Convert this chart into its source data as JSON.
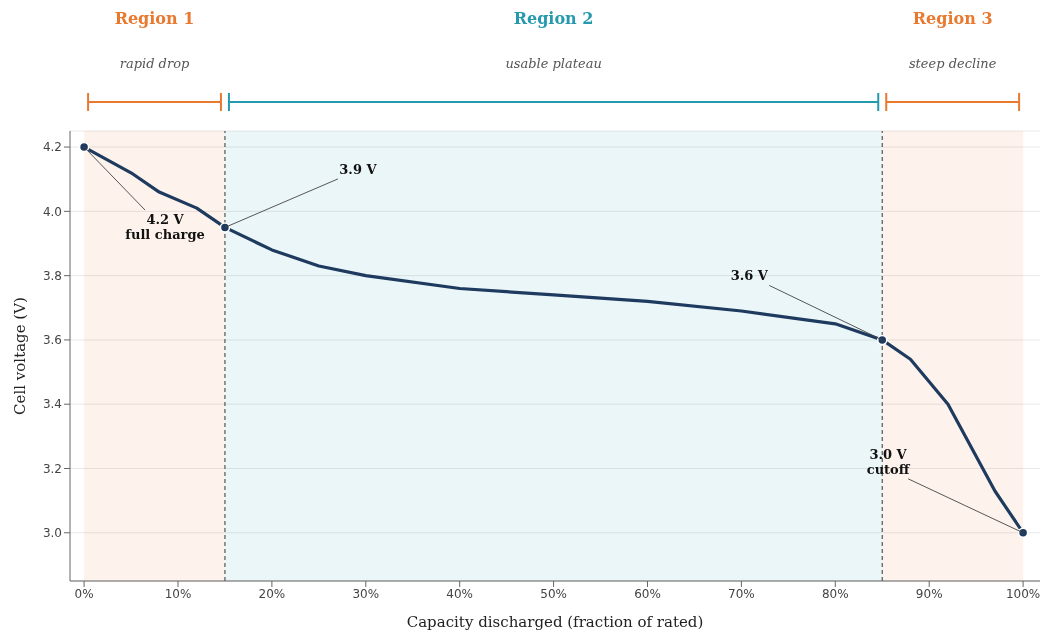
{
  "chart_data": {
    "type": "line",
    "xlabel": "Capacity discharged (fraction of rated)",
    "ylabel": "Cell voltage (V)",
    "series": [
      {
        "color": "#1f3a5f",
        "x": [
          0,
          0.05,
          0.08,
          0.12,
          0.15,
          0.2,
          0.25,
          0.3,
          0.4,
          0.5,
          0.6,
          0.7,
          0.8,
          0.85,
          0.88,
          0.92,
          0.97,
          1.0
        ],
        "values": [
          4.2,
          4.12,
          4.06,
          4.01,
          3.95,
          3.88,
          3.83,
          3.8,
          3.76,
          3.74,
          3.72,
          3.69,
          3.65,
          3.6,
          3.54,
          3.4,
          3.13,
          3.0
        ]
      },
      {
        "type": "scatter",
        "color": "#1f3a5f",
        "marker": "circle",
        "x": [
          0,
          0.15,
          0.85,
          1.0
        ],
        "values": [
          4.2,
          3.95,
          3.6,
          3.0
        ]
      }
    ],
    "xlim": [
      -0.015,
      1.018
    ],
    "ylim": [
      2.85,
      4.25
    ],
    "xticks": [
      {
        "value": 0,
        "label": "0%"
      },
      {
        "value": 0.1,
        "label": "10%"
      },
      {
        "value": 0.2,
        "label": "20%"
      },
      {
        "value": 0.3,
        "label": "30%"
      },
      {
        "value": 0.4,
        "label": "40%"
      },
      {
        "value": 0.5,
        "label": "50%"
      },
      {
        "value": 0.6,
        "label": "60%"
      },
      {
        "value": 0.7,
        "label": "70%"
      },
      {
        "value": 0.8,
        "label": "80%"
      },
      {
        "value": 0.9,
        "label": "90%"
      },
      {
        "value": 1.0,
        "label": "100%"
      }
    ],
    "yticks": [
      {
        "value": 3.0,
        "label": "3.0"
      },
      {
        "value": 3.2,
        "label": "3.2"
      },
      {
        "value": 3.4,
        "label": "3.4"
      },
      {
        "value": 3.6,
        "label": "3.6"
      },
      {
        "value": 3.8,
        "label": "3.8"
      },
      {
        "value": 4.0,
        "label": "4.0"
      },
      {
        "value": 4.2,
        "label": "4.2"
      }
    ],
    "grid": "y",
    "line_style": "solid",
    "bands": [
      {
        "axis": "x",
        "from": 0,
        "to": 0.15,
        "label": "Region 1",
        "color": "#e8792e"
      },
      {
        "axis": "x",
        "from": 0.15,
        "to": 0.85,
        "label": "Region 2",
        "color": "#2599ad"
      },
      {
        "axis": "x",
        "from": 0.85,
        "to": 1.0,
        "label": "Region 3",
        "color": "#e8792e"
      }
    ],
    "ref_lines": [
      {
        "axis": "x",
        "value": 0.15,
        "color": "#555555",
        "line_style": "dashed"
      },
      {
        "axis": "x",
        "value": 0.85,
        "color": "#555555",
        "line_style": "dashed"
      }
    ],
    "annotations": [
      "rapid drop",
      "usable plateau",
      "steep decline",
      {
        "text": "4.2 V\nfull charge",
        "x": 0,
        "y": 4.2
      },
      {
        "text": "3.9 V",
        "x": 0.15,
        "y": 3.95
      },
      {
        "text": "3.6 V",
        "x": 0.85,
        "y": 3.6
      },
      {
        "text": "3.0 V\ncutoff",
        "x": 1.0,
        "y": 3.0
      }
    ]
  }
}
